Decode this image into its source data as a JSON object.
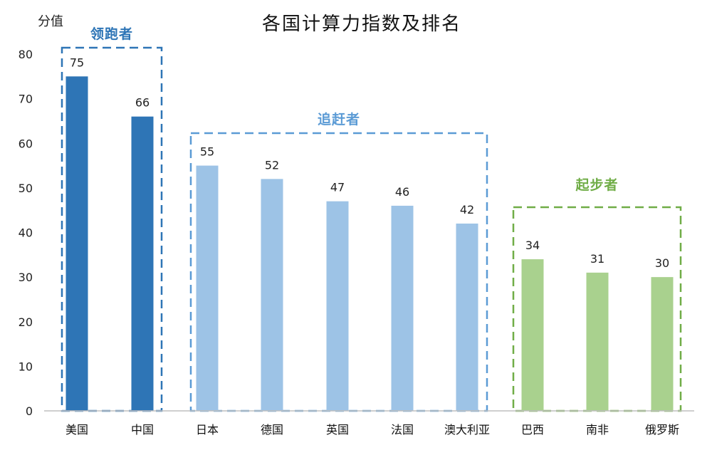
{
  "chart_data": {
    "type": "bar",
    "title": "各国计算力指数及排名",
    "ylabel": "分值",
    "xlabel": "",
    "ylim": [
      0,
      80
    ],
    "yticks": [
      0,
      10,
      20,
      30,
      40,
      50,
      60,
      70,
      80
    ],
    "grid": false,
    "categories": [
      "美国",
      "中国",
      "日本",
      "德国",
      "英国",
      "法国",
      "澳大利亚",
      "巴西",
      "南非",
      "俄罗斯"
    ],
    "values": [
      75,
      66,
      55,
      52,
      47,
      46,
      42,
      34,
      31,
      30
    ],
    "groups": [
      {
        "name": "领跑者",
        "categories": [
          "美国",
          "中国"
        ],
        "color": "#2e75b6"
      },
      {
        "name": "追赶者",
        "categories": [
          "日本",
          "德国",
          "英国",
          "法国",
          "澳大利亚"
        ],
        "color": "#9dc3e6"
      },
      {
        "name": "起步者",
        "categories": [
          "巴西",
          "南非",
          "俄罗斯"
        ],
        "color": "#a9d18e"
      }
    ],
    "group_label_colors": [
      "#2e75b6",
      "#5b9bd5",
      "#70ad47"
    ]
  }
}
